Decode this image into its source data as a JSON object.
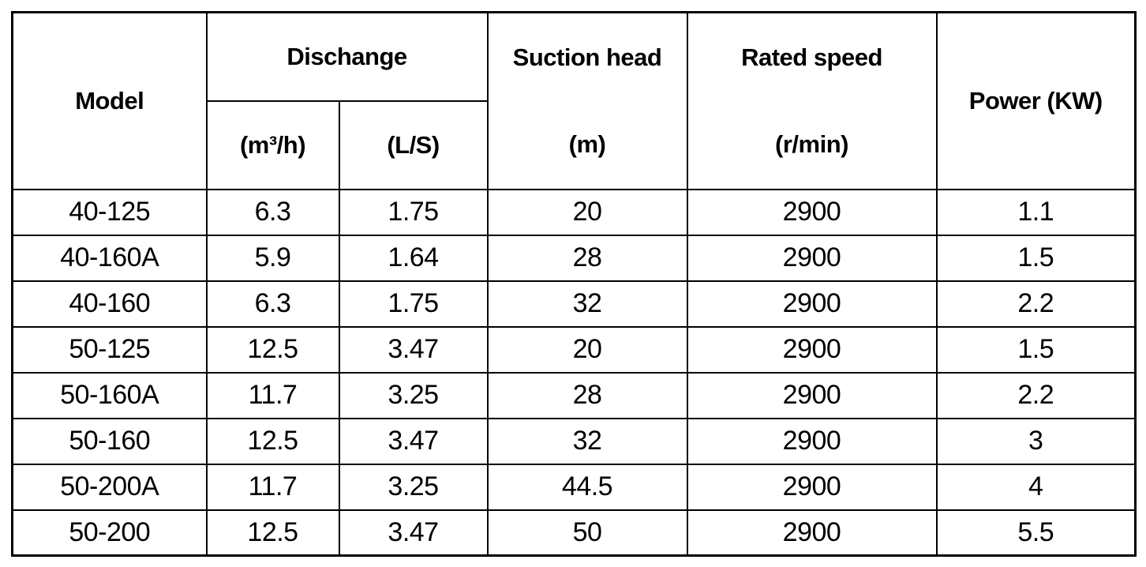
{
  "table": {
    "headers": {
      "model": "Model",
      "discharge_group": "Dischange",
      "discharge_unit_m3h": "(m³/h)",
      "discharge_unit_ls": "(L/S)",
      "suction_head_label": "Suction head",
      "suction_head_unit": "(m)",
      "rated_speed_label": "Rated speed",
      "rated_speed_unit": "(r/min)",
      "power_label": "Power (KW)"
    },
    "rows": [
      {
        "model": "40-125",
        "m3h": "6.3",
        "ls": "1.75",
        "suction": "20",
        "speed": "2900",
        "power": "1.1"
      },
      {
        "model": "40-160A",
        "m3h": "5.9",
        "ls": "1.64",
        "suction": "28",
        "speed": "2900",
        "power": "1.5"
      },
      {
        "model": "40-160",
        "m3h": "6.3",
        "ls": "1.75",
        "suction": "32",
        "speed": "2900",
        "power": "2.2"
      },
      {
        "model": "50-125",
        "m3h": "12.5",
        "ls": "3.47",
        "suction": "20",
        "speed": "2900",
        "power": "1.5"
      },
      {
        "model": "50-160A",
        "m3h": "11.7",
        "ls": "3.25",
        "suction": "28",
        "speed": "2900",
        "power": "2.2"
      },
      {
        "model": "50-160",
        "m3h": "12.5",
        "ls": "3.47",
        "suction": "32",
        "speed": "2900",
        "power": "3"
      },
      {
        "model": "50-200A",
        "m3h": "11.7",
        "ls": "3.25",
        "suction": "44.5",
        "speed": "2900",
        "power": "4"
      },
      {
        "model": "50-200",
        "m3h": "12.5",
        "ls": "3.47",
        "suction": "50",
        "speed": "2900",
        "power": "5.5"
      }
    ],
    "colors": {
      "border": "#000000",
      "background": "#ffffff",
      "text": "#000000"
    }
  }
}
